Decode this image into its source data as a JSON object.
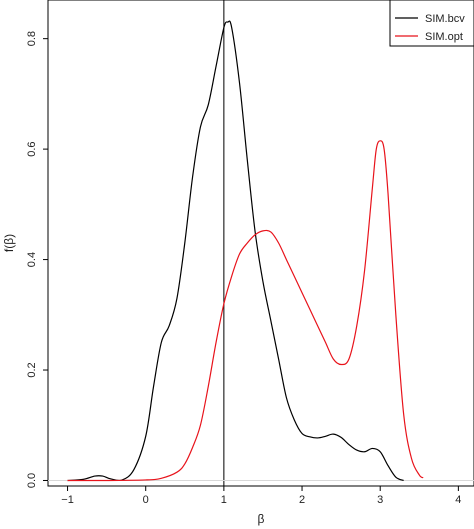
{
  "chart_data": {
    "type": "line",
    "title": "",
    "xlabel": "β",
    "ylabel": "f(β)",
    "xlim": [
      -1.25,
      4.2
    ],
    "ylim": [
      -0.01,
      0.87
    ],
    "xticks": [
      -1,
      0,
      1,
      2,
      3,
      4
    ],
    "xtick_labels": [
      "−1",
      "0",
      "1",
      "2",
      "3",
      "4"
    ],
    "yticks": [
      0.0,
      0.2,
      0.4,
      0.6,
      0.8
    ],
    "ytick_labels": [
      "0.0",
      "0.2",
      "0.4",
      "0.6",
      "0.8"
    ],
    "grid": false,
    "legend_position": "top-right",
    "reference_lines": {
      "vertical_x": 1.0,
      "horizontal_y": 0.0
    },
    "series": [
      {
        "name": "SIM.bcv",
        "color": "#000000",
        "x": [
          -1.0,
          -0.8,
          -0.65,
          -0.55,
          -0.45,
          -0.3,
          -0.15,
          0.0,
          0.1,
          0.2,
          0.3,
          0.4,
          0.5,
          0.6,
          0.7,
          0.8,
          0.9,
          1.0,
          1.05,
          1.1,
          1.2,
          1.3,
          1.4,
          1.5,
          1.6,
          1.7,
          1.8,
          1.9,
          2.0,
          2.1,
          2.2,
          2.3,
          2.4,
          2.5,
          2.6,
          2.7,
          2.8,
          2.9,
          3.0,
          3.1,
          3.2,
          3.3
        ],
        "y": [
          0.0,
          0.002,
          0.008,
          0.008,
          0.003,
          0.001,
          0.02,
          0.08,
          0.17,
          0.25,
          0.28,
          0.33,
          0.43,
          0.55,
          0.64,
          0.68,
          0.75,
          0.82,
          0.83,
          0.82,
          0.72,
          0.58,
          0.45,
          0.36,
          0.29,
          0.22,
          0.15,
          0.11,
          0.085,
          0.079,
          0.077,
          0.08,
          0.084,
          0.078,
          0.065,
          0.055,
          0.052,
          0.058,
          0.052,
          0.027,
          0.006,
          0.0
        ]
      },
      {
        "name": "SIM.opt",
        "color": "#e8131b",
        "x": [
          -1.0,
          -0.5,
          0.0,
          0.2,
          0.4,
          0.5,
          0.6,
          0.7,
          0.8,
          0.9,
          1.0,
          1.1,
          1.2,
          1.3,
          1.4,
          1.5,
          1.6,
          1.7,
          1.8,
          1.9,
          2.0,
          2.1,
          2.2,
          2.3,
          2.4,
          2.5,
          2.6,
          2.7,
          2.8,
          2.9,
          2.95,
          3.0,
          3.05,
          3.1,
          3.2,
          3.3,
          3.4,
          3.5,
          3.55
        ],
        "y": [
          0.0,
          0.0,
          0.001,
          0.004,
          0.015,
          0.03,
          0.06,
          0.1,
          0.17,
          0.25,
          0.32,
          0.37,
          0.41,
          0.43,
          0.445,
          0.452,
          0.45,
          0.43,
          0.4,
          0.37,
          0.34,
          0.31,
          0.28,
          0.25,
          0.22,
          0.21,
          0.22,
          0.28,
          0.38,
          0.53,
          0.6,
          0.615,
          0.6,
          0.52,
          0.3,
          0.12,
          0.04,
          0.01,
          0.005
        ]
      }
    ]
  }
}
